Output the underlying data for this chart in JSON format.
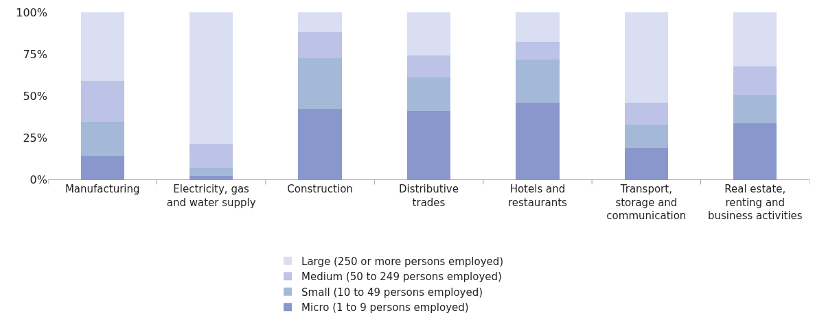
{
  "chart_data": {
    "type": "bar",
    "stacked": true,
    "categories": [
      "Manufacturing",
      "Electricity, gas\nand water supply",
      "Construction",
      "Distributive\ntrades",
      "Hotels and\nrestaurants",
      "Transport,\nstorage and\ncommunication",
      "Real estate,\nrenting and\nbusiness activities"
    ],
    "series": [
      {
        "name": "Micro (1 to 9 persons employed)",
        "color": "#8a97cc",
        "values": [
          14,
          2,
          42.4,
          40.8,
          45.9,
          18.8,
          33.7
        ]
      },
      {
        "name": "Small (10 to 49 persons employed)",
        "color": "#a4b8d8",
        "values": [
          20.5,
          5,
          30.1,
          20.4,
          25.9,
          14.1,
          16.9
        ]
      },
      {
        "name": "Medium (50 to 249 persons employed)",
        "color": "#bcc3e6",
        "values": [
          24.7,
          14.2,
          15.7,
          12.9,
          10.6,
          13,
          17.2
        ]
      },
      {
        "name": "Large (250 or more persons employed)",
        "color": "#d9def2",
        "values": [
          40.8,
          78.8,
          11.8,
          25.9,
          17.6,
          54.1,
          32.2
        ]
      }
    ],
    "ylim": [
      0,
      100
    ],
    "yticks": [
      {
        "value": 0,
        "label": "0%"
      },
      {
        "value": 25,
        "label": "25%"
      },
      {
        "value": 50,
        "label": "50%"
      },
      {
        "value": 75,
        "label": "75%"
      },
      {
        "value": 100,
        "label": "100%"
      }
    ],
    "grid": false,
    "legend": "bottom"
  }
}
